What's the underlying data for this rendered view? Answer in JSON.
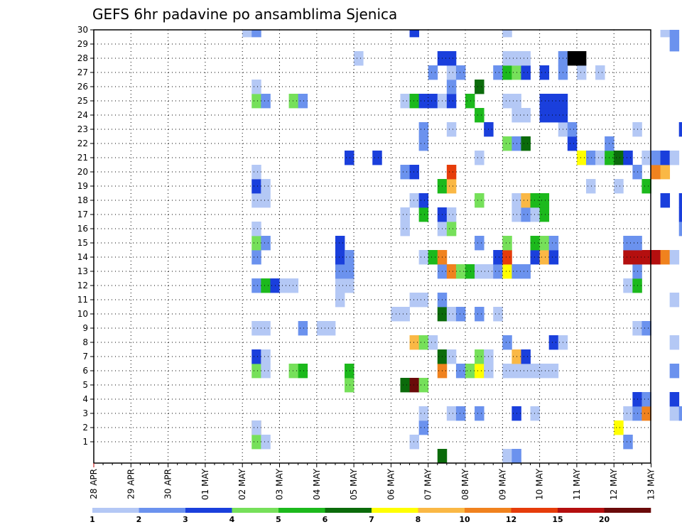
{
  "chart_data": {
    "type": "heatmap",
    "title": "GEFS 6hr padavine po ansamblima Sjenica",
    "xlabel": "",
    "ylabel": "",
    "x_tick_labels": [
      "28 APR",
      "29 APR",
      "30 APR",
      "01 MAY",
      "02 MAY",
      "03 MAY",
      "04 MAY",
      "05 MAY",
      "06 MAY",
      "07 MAY",
      "08 MAY",
      "09 MAY",
      "10 MAY",
      "11 MAY",
      "12 MAY",
      "13 MAY"
    ],
    "y_range": [
      0,
      30
    ],
    "y_ticks": [
      1,
      2,
      3,
      4,
      5,
      6,
      7,
      8,
      9,
      10,
      11,
      12,
      13,
      14,
      15,
      16,
      17,
      18,
      19,
      20,
      21,
      22,
      23,
      24,
      25,
      26,
      27,
      28,
      29,
      30
    ],
    "grid": true,
    "time_step": "6hr",
    "legend": {
      "placement": "bottom",
      "labels": [
        "1",
        "2",
        "3",
        "4",
        "5",
        "6",
        "7",
        "8",
        "10",
        "12",
        "15",
        "20"
      ],
      "colors": [
        "#b4c8f5",
        "#6b92ee",
        "#1a3fdc",
        "#76e05a",
        "#1cb91c",
        "#0b6b0b",
        "#ffff00",
        "#fab845",
        "#f0821e",
        "#e63c0a",
        "#b40f0f",
        "#6a0a0a"
      ]
    },
    "cells": [
      [
        17,
        1,
        4
      ],
      [
        17,
        2,
        8
      ],
      [
        18,
        1,
        1
      ],
      [
        34,
        1,
        1
      ],
      [
        57,
        1,
        2
      ],
      [
        66,
        1,
        4
      ],
      [
        73,
        1,
        3
      ],
      [
        17,
        2,
        1
      ],
      [
        35,
        2,
        2
      ],
      [
        56,
        2,
        7
      ],
      [
        71,
        2,
        1
      ],
      [
        35,
        3,
        1
      ],
      [
        38,
        3,
        1
      ],
      [
        39,
        3,
        2
      ],
      [
        41,
        3,
        2
      ],
      [
        45,
        3,
        3
      ],
      [
        47,
        3,
        1
      ],
      [
        57,
        3,
        1
      ],
      [
        58,
        3,
        2
      ],
      [
        59,
        3,
        9
      ],
      [
        62,
        3,
        1
      ],
      [
        63,
        3,
        2
      ],
      [
        64,
        3,
        1
      ],
      [
        58,
        4,
        3
      ],
      [
        59,
        4,
        2
      ],
      [
        62,
        4,
        3
      ],
      [
        73,
        4,
        1
      ],
      [
        27,
        5,
        4
      ],
      [
        33,
        5,
        6
      ],
      [
        34,
        5,
        12
      ],
      [
        35,
        5,
        4
      ],
      [
        67,
        5,
        2
      ],
      [
        68,
        5,
        9
      ],
      [
        70,
        5,
        2
      ],
      [
        71,
        5,
        3
      ],
      [
        72,
        5,
        9
      ],
      [
        73,
        5,
        5
      ],
      [
        17,
        6,
        4
      ],
      [
        18,
        6,
        1
      ],
      [
        21,
        6,
        4
      ],
      [
        22,
        6,
        5
      ],
      [
        27,
        6,
        5
      ],
      [
        37,
        6,
        9
      ],
      [
        39,
        6,
        2
      ],
      [
        40,
        6,
        4
      ],
      [
        41,
        6,
        7
      ],
      [
        42,
        6,
        1
      ],
      [
        44,
        6,
        1
      ],
      [
        45,
        6,
        1
      ],
      [
        46,
        6,
        1
      ],
      [
        47,
        6,
        1
      ],
      [
        48,
        6,
        1
      ],
      [
        49,
        6,
        1
      ],
      [
        62,
        6,
        2
      ],
      [
        67,
        6,
        2
      ],
      [
        68,
        6,
        2
      ],
      [
        17,
        7,
        3
      ],
      [
        18,
        7,
        1
      ],
      [
        37,
        7,
        6
      ],
      [
        38,
        7,
        1
      ],
      [
        41,
        7,
        4
      ],
      [
        42,
        7,
        1
      ],
      [
        45,
        7,
        8
      ],
      [
        46,
        7,
        3
      ],
      [
        73,
        7,
        1
      ],
      [
        34,
        8,
        8
      ],
      [
        35,
        8,
        4
      ],
      [
        36,
        8,
        1
      ],
      [
        44,
        8,
        2
      ],
      [
        49,
        8,
        3
      ],
      [
        50,
        8,
        1
      ],
      [
        62,
        8,
        1
      ],
      [
        65,
        8,
        6
      ],
      [
        73,
        8,
        1
      ],
      [
        74,
        8,
        4
      ],
      [
        17,
        9,
        1
      ],
      [
        18,
        9,
        1
      ],
      [
        22,
        9,
        2
      ],
      [
        24,
        9,
        1
      ],
      [
        25,
        9,
        1
      ],
      [
        58,
        9,
        1
      ],
      [
        59,
        9,
        2
      ],
      [
        32,
        10,
        1
      ],
      [
        33,
        10,
        1
      ],
      [
        37,
        10,
        6
      ],
      [
        38,
        10,
        1
      ],
      [
        39,
        10,
        2
      ],
      [
        41,
        10,
        2
      ],
      [
        43,
        10,
        1
      ],
      [
        26,
        11,
        1
      ],
      [
        34,
        11,
        1
      ],
      [
        35,
        11,
        1
      ],
      [
        37,
        11,
        2
      ],
      [
        62,
        11,
        1
      ],
      [
        73,
        11,
        1
      ],
      [
        17,
        12,
        2
      ],
      [
        18,
        12,
        5
      ],
      [
        19,
        12,
        3
      ],
      [
        20,
        12,
        1
      ],
      [
        21,
        12,
        1
      ],
      [
        26,
        12,
        1
      ],
      [
        27,
        12,
        1
      ],
      [
        57,
        12,
        1
      ],
      [
        58,
        12,
        5
      ],
      [
        72,
        12,
        1
      ],
      [
        73,
        12,
        2
      ],
      [
        26,
        13,
        2
      ],
      [
        27,
        13,
        2
      ],
      [
        37,
        13,
        2
      ],
      [
        38,
        13,
        9
      ],
      [
        39,
        13,
        4
      ],
      [
        40,
        13,
        5
      ],
      [
        41,
        13,
        1
      ],
      [
        42,
        13,
        1
      ],
      [
        43,
        13,
        2
      ],
      [
        44,
        13,
        7
      ],
      [
        45,
        13,
        2
      ],
      [
        46,
        13,
        2
      ],
      [
        58,
        13,
        2
      ],
      [
        65,
        13,
        3
      ],
      [
        66,
        13,
        5
      ],
      [
        67,
        13,
        1
      ],
      [
        68,
        13,
        2
      ],
      [
        71,
        13,
        13
      ],
      [
        72,
        13,
        14
      ],
      [
        73,
        13,
        1
      ],
      [
        17,
        14,
        2
      ],
      [
        26,
        14,
        3
      ],
      [
        27,
        14,
        2
      ],
      [
        35,
        14,
        1
      ],
      [
        36,
        14,
        5
      ],
      [
        37,
        14,
        9
      ],
      [
        43,
        14,
        3
      ],
      [
        44,
        14,
        10
      ],
      [
        47,
        14,
        3
      ],
      [
        48,
        14,
        8
      ],
      [
        49,
        14,
        3
      ],
      [
        57,
        14,
        11
      ],
      [
        58,
        14,
        11
      ],
      [
        59,
        14,
        11
      ],
      [
        60,
        14,
        11
      ],
      [
        61,
        14,
        9
      ],
      [
        62,
        14,
        1
      ],
      [
        64,
        14,
        1
      ],
      [
        17,
        15,
        4
      ],
      [
        18,
        15,
        2
      ],
      [
        26,
        15,
        3
      ],
      [
        41,
        15,
        2
      ],
      [
        44,
        15,
        4
      ],
      [
        47,
        15,
        5
      ],
      [
        48,
        15,
        4
      ],
      [
        49,
        15,
        2
      ],
      [
        57,
        15,
        2
      ],
      [
        58,
        15,
        2
      ],
      [
        17,
        16,
        1
      ],
      [
        33,
        16,
        1
      ],
      [
        37,
        16,
        1
      ],
      [
        38,
        16,
        4
      ],
      [
        63,
        16,
        2
      ],
      [
        65,
        16,
        1
      ],
      [
        73,
        16,
        2
      ],
      [
        33,
        17,
        1
      ],
      [
        35,
        17,
        5
      ],
      [
        37,
        17,
        3
      ],
      [
        38,
        17,
        1
      ],
      [
        45,
        17,
        1
      ],
      [
        46,
        17,
        2
      ],
      [
        47,
        17,
        1
      ],
      [
        48,
        17,
        5
      ],
      [
        63,
        17,
        3
      ],
      [
        64,
        17,
        8
      ],
      [
        65,
        17,
        1
      ],
      [
        67,
        17,
        1
      ],
      [
        68,
        17,
        2
      ],
      [
        74,
        17,
        5
      ],
      [
        17,
        18,
        1
      ],
      [
        18,
        18,
        1
      ],
      [
        34,
        18,
        1
      ],
      [
        35,
        18,
        3
      ],
      [
        41,
        18,
        4
      ],
      [
        45,
        18,
        1
      ],
      [
        46,
        18,
        8
      ],
      [
        47,
        18,
        5
      ],
      [
        48,
        18,
        5
      ],
      [
        61,
        18,
        3
      ],
      [
        63,
        18,
        3
      ],
      [
        64,
        18,
        3
      ],
      [
        66,
        18,
        1
      ],
      [
        67,
        18,
        2
      ],
      [
        68,
        18,
        1
      ],
      [
        17,
        19,
        3
      ],
      [
        18,
        19,
        1
      ],
      [
        37,
        19,
        5
      ],
      [
        38,
        19,
        8
      ],
      [
        53,
        19,
        1
      ],
      [
        56,
        19,
        1
      ],
      [
        59,
        19,
        5
      ],
      [
        17,
        20,
        1
      ],
      [
        33,
        20,
        2
      ],
      [
        34,
        20,
        3
      ],
      [
        38,
        20,
        10
      ],
      [
        58,
        20,
        2
      ],
      [
        60,
        20,
        9
      ],
      [
        61,
        20,
        8
      ],
      [
        68,
        20,
        1
      ],
      [
        27,
        21,
        3
      ],
      [
        30,
        21,
        3
      ],
      [
        41,
        21,
        1
      ],
      [
        52,
        21,
        7
      ],
      [
        53,
        21,
        2
      ],
      [
        54,
        21,
        1
      ],
      [
        55,
        21,
        5
      ],
      [
        56,
        21,
        6
      ],
      [
        57,
        21,
        3
      ],
      [
        59,
        21,
        1
      ],
      [
        60,
        21,
        2
      ],
      [
        61,
        21,
        3
      ],
      [
        62,
        21,
        1
      ],
      [
        35,
        22,
        2
      ],
      [
        44,
        22,
        4
      ],
      [
        45,
        22,
        2
      ],
      [
        46,
        22,
        6
      ],
      [
        51,
        22,
        3
      ],
      [
        55,
        22,
        2
      ],
      [
        68,
        22,
        2
      ],
      [
        35,
        23,
        2
      ],
      [
        38,
        23,
        1
      ],
      [
        42,
        23,
        3
      ],
      [
        50,
        23,
        1
      ],
      [
        51,
        23,
        2
      ],
      [
        58,
        23,
        1
      ],
      [
        63,
        23,
        3
      ],
      [
        41,
        24,
        5
      ],
      [
        45,
        24,
        1
      ],
      [
        46,
        24,
        1
      ],
      [
        48,
        24,
        3
      ],
      [
        49,
        24,
        3
      ],
      [
        50,
        24,
        3
      ],
      [
        17,
        25,
        4
      ],
      [
        18,
        25,
        2
      ],
      [
        21,
        25,
        4
      ],
      [
        22,
        25,
        2
      ],
      [
        33,
        25,
        1
      ],
      [
        34,
        25,
        5
      ],
      [
        35,
        25,
        3
      ],
      [
        36,
        25,
        3
      ],
      [
        37,
        25,
        1
      ],
      [
        38,
        25,
        3
      ],
      [
        40,
        25,
        5
      ],
      [
        44,
        25,
        1
      ],
      [
        45,
        25,
        1
      ],
      [
        48,
        25,
        3
      ],
      [
        49,
        25,
        3
      ],
      [
        50,
        25,
        3
      ],
      [
        17,
        26,
        1
      ],
      [
        38,
        26,
        2
      ],
      [
        41,
        26,
        6
      ],
      [
        36,
        27,
        2
      ],
      [
        38,
        27,
        1
      ],
      [
        39,
        27,
        2
      ],
      [
        43,
        27,
        2
      ],
      [
        44,
        27,
        5
      ],
      [
        45,
        27,
        4
      ],
      [
        46,
        27,
        3
      ],
      [
        48,
        27,
        3
      ],
      [
        50,
        27,
        2
      ],
      [
        52,
        27,
        1
      ],
      [
        54,
        27,
        1
      ],
      [
        65,
        27,
        3
      ],
      [
        66,
        27,
        6
      ],
      [
        67,
        27,
        2
      ],
      [
        68,
        27,
        2
      ],
      [
        28,
        28,
        1
      ],
      [
        37,
        28,
        3
      ],
      [
        38,
        28,
        3
      ],
      [
        44,
        28,
        1
      ],
      [
        45,
        28,
        1
      ],
      [
        46,
        28,
        1
      ],
      [
        50,
        28,
        2
      ],
      [
        51,
        28,
        14
      ],
      [
        52,
        28,
        14
      ],
      [
        64,
        28,
        1
      ],
      [
        65,
        28,
        2
      ],
      [
        62,
        29,
        2
      ],
      [
        65,
        29,
        4
      ],
      [
        66,
        29,
        5
      ],
      [
        67,
        29,
        1
      ],
      [
        16,
        30,
        1
      ],
      [
        17,
        30,
        2
      ],
      [
        34,
        30,
        3
      ],
      [
        44,
        30,
        1
      ],
      [
        61,
        30,
        1
      ],
      [
        62,
        30,
        2
      ],
      [
        65,
        30,
        2
      ],
      [
        37,
        0,
        6
      ],
      [
        44,
        0,
        1
      ],
      [
        45,
        0,
        2
      ],
      [
        69,
        0,
        1
      ]
    ]
  }
}
